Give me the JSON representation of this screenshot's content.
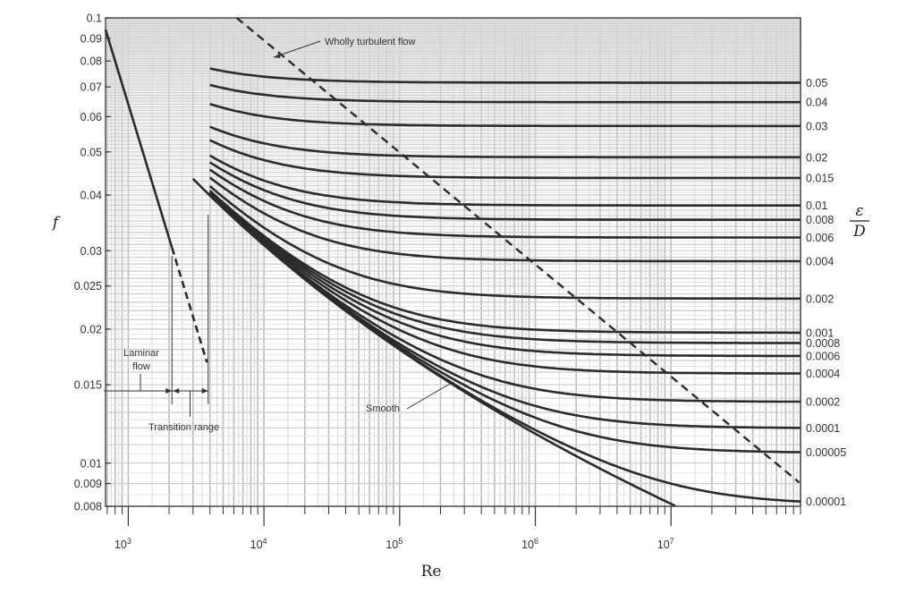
{
  "chart_data": {
    "type": "line",
    "xscale": "log",
    "yscale": "log",
    "xlim": [
      680,
      90000000
    ],
    "ylim": [
      0.008,
      0.1
    ],
    "grid": true,
    "xlabel": "Re",
    "ylabel": "f",
    "right_axis_label": {
      "numerator": "ε",
      "denominator": "D"
    },
    "x_ticks": [
      {
        "value": 1000,
        "base": "10",
        "exp": "3"
      },
      {
        "value": 10000,
        "base": "10",
        "exp": "4"
      },
      {
        "value": 100000,
        "base": "10",
        "exp": "5"
      },
      {
        "value": 1000000,
        "base": "10",
        "exp": "6"
      },
      {
        "value": 10000000,
        "base": "10",
        "exp": "7"
      }
    ],
    "y_ticks": [
      {
        "value": 0.1,
        "label": "0.1"
      },
      {
        "value": 0.09,
        "label": "0.09"
      },
      {
        "value": 0.08,
        "label": "0.08"
      },
      {
        "value": 0.07,
        "label": "0.07"
      },
      {
        "value": 0.06,
        "label": "0.06"
      },
      {
        "value": 0.05,
        "label": "0.05"
      },
      {
        "value": 0.04,
        "label": "0.04"
      },
      {
        "value": 0.03,
        "label": "0.03"
      },
      {
        "value": 0.025,
        "label": "0.025"
      },
      {
        "value": 0.02,
        "label": "0.02"
      },
      {
        "value": 0.015,
        "label": "0.015"
      },
      {
        "value": 0.01,
        "label": "0.01"
      },
      {
        "value": 0.009,
        "label": "0.009"
      },
      {
        "value": 0.008,
        "label": "0.008"
      }
    ],
    "roughness_series": [
      {
        "label": "0.05",
        "value": 0.05
      },
      {
        "label": "0.04",
        "value": 0.04
      },
      {
        "label": "0.03",
        "value": 0.03
      },
      {
        "label": "0.02",
        "value": 0.02
      },
      {
        "label": "0.015",
        "value": 0.015
      },
      {
        "label": "0.01",
        "value": 0.01
      },
      {
        "label": "0.008",
        "value": 0.008
      },
      {
        "label": "0.006",
        "value": 0.006
      },
      {
        "label": "0.004",
        "value": 0.004
      },
      {
        "label": "0.002",
        "value": 0.002
      },
      {
        "label": "0.001",
        "value": 0.001
      },
      {
        "label": "0.0008",
        "value": 0.0008
      },
      {
        "label": "0.0006",
        "value": 0.0006
      },
      {
        "label": "0.0004",
        "value": 0.0004
      },
      {
        "label": "0.0002",
        "value": 0.0002
      },
      {
        "label": "0.0001",
        "value": 0.0001
      },
      {
        "label": "0.00005",
        "value": 5e-05
      },
      {
        "label": "0.00001",
        "value": 1e-05
      }
    ],
    "laminar": {
      "formula": "f = 64/Re",
      "solid_re": [
        680,
        2100
      ],
      "dashed_re": [
        2100,
        3800
      ]
    },
    "turbulent_start_re": 4000,
    "wholly_turbulent": {
      "re_range": [
        6300,
        88000000
      ]
    },
    "annotations": {
      "wholly_turbulent": "Wholly turbulent flow",
      "laminar_line1": "Laminar",
      "laminar_line2": "flow",
      "transition": "Transition range",
      "smooth": "Smooth"
    }
  }
}
